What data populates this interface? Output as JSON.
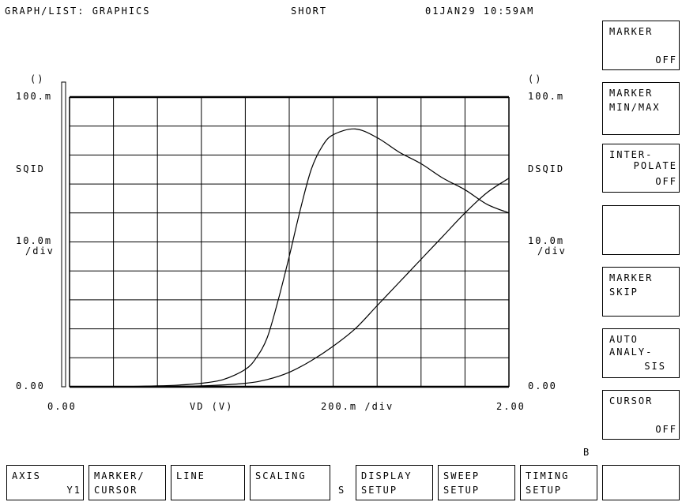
{
  "header": {
    "title": "GRAPH/LIST: GRAPHICS",
    "mode": "SHORT",
    "datetime": "01JAN29 10:59AM"
  },
  "axes": {
    "left_unit": "()",
    "right_unit": "()",
    "left_top": "100.m",
    "right_top": "100.m",
    "left_name": "SQID",
    "right_name": "DSQID",
    "left_div": "10.0m",
    "left_div2": "/div",
    "right_div": "10.0m",
    "right_div2": "/div",
    "left_bottom": "0.00",
    "right_bottom": "0.00",
    "x_start": "0.00",
    "x_label": "VD (V)",
    "x_div": "200.m /div",
    "x_end": "2.00"
  },
  "side_keys": [
    {
      "line1": "MARKER",
      "line2": "",
      "line3": "OFF"
    },
    {
      "line1": "MARKER",
      "line2": "MIN/MAX",
      "line3": ""
    },
    {
      "line1": "INTER-",
      "line2": "POLATE",
      "line3": "OFF"
    },
    {
      "line1": "",
      "line2": "",
      "line3": ""
    },
    {
      "line1": "MARKER",
      "line2": "SKIP",
      "line3": ""
    },
    {
      "line1": "AUTO",
      "line2": "ANALY-",
      "line3": "SIS"
    },
    {
      "line1": "CURSOR",
      "line2": "",
      "line3": "OFF"
    }
  ],
  "bottom_keys": [
    {
      "top": "AXIS",
      "bottom": "Y1"
    },
    {
      "top": "MARKER/",
      "bottom": "CURSOR"
    },
    {
      "top": "LINE",
      "bottom": ""
    },
    {
      "top": "SCALING",
      "bottom": ""
    },
    {
      "top": "DISPLAY",
      "bottom": "SETUP"
    },
    {
      "top": "SWEEP",
      "bottom": "SETUP"
    },
    {
      "top": "TIMING",
      "bottom": "SETUP"
    },
    {
      "top": "",
      "bottom": ""
    }
  ],
  "indicators": {
    "s": "S",
    "b": "B"
  },
  "chart_data": {
    "type": "line",
    "xlim": [
      0,
      2.0
    ],
    "ylim": [
      0,
      0.1
    ],
    "grid": true,
    "series": [
      {
        "name": "SQID",
        "x": [
          0,
          0.2,
          0.4,
          0.5,
          0.6,
          0.7,
          0.8,
          0.85,
          0.9,
          0.95,
          1.0,
          1.05,
          1.1,
          1.15,
          1.2,
          1.3,
          1.4,
          1.5,
          1.6,
          1.7,
          1.8,
          1.9,
          2.0
        ],
        "y": [
          0,
          0,
          0.0003,
          0.0006,
          0.0012,
          0.0025,
          0.006,
          0.01,
          0.017,
          0.03,
          0.045,
          0.061,
          0.075,
          0.083,
          0.087,
          0.089,
          0.086,
          0.081,
          0.077,
          0.072,
          0.068,
          0.063,
          0.06
        ]
      },
      {
        "name": "DSQID",
        "x": [
          0,
          0.2,
          0.4,
          0.6,
          0.8,
          0.9,
          1.0,
          1.1,
          1.2,
          1.3,
          1.4,
          1.5,
          1.6,
          1.7,
          1.8,
          1.9,
          2.0
        ],
        "y": [
          0,
          0,
          0.0001,
          0.0003,
          0.0012,
          0.0025,
          0.005,
          0.009,
          0.014,
          0.02,
          0.028,
          0.036,
          0.044,
          0.052,
          0.06,
          0.067,
          0.072
        ]
      }
    ]
  }
}
